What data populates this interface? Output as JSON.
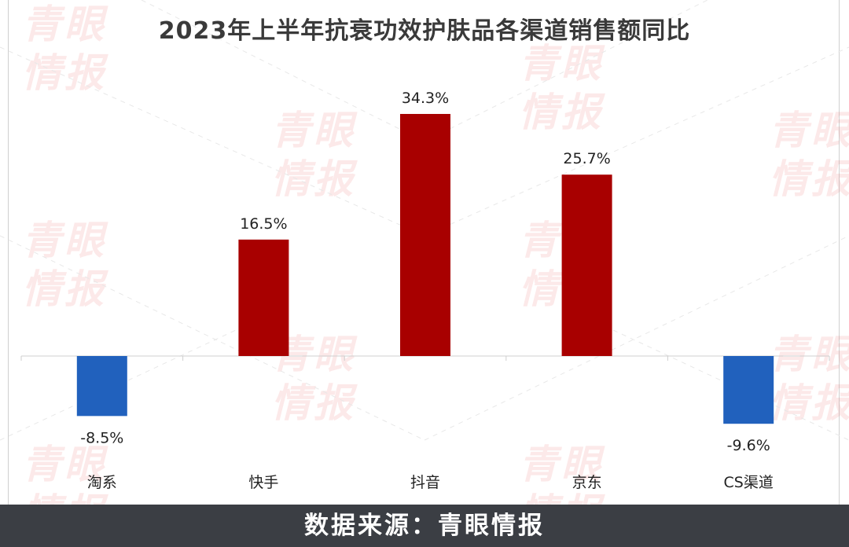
{
  "chart_data": {
    "type": "bar",
    "title": "2023年上半年抗衰功效护肤品各渠道销售额同比",
    "categories": [
      "淘系",
      "快手",
      "抖音",
      "京东",
      "CS渠道"
    ],
    "values": [
      -8.5,
      16.5,
      34.3,
      25.7,
      -9.6
    ],
    "data_labels": [
      "-8.5%",
      "16.5%",
      "34.3%",
      "25.7%",
      "-9.6%"
    ],
    "unit": "%",
    "ylim": [
      -12,
      37
    ],
    "grid": false,
    "legend": "none",
    "colors": {
      "positive": "#a80000",
      "negative": "#2161bd"
    }
  },
  "watermark": "青眼情报",
  "footer": "数据来源：青眼情报"
}
